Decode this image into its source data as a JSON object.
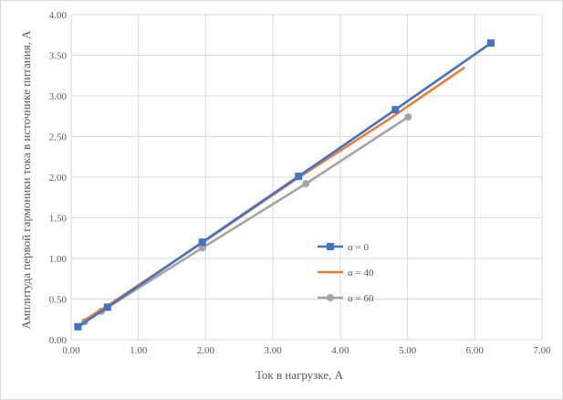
{
  "chart_data": {
    "type": "scatter",
    "title": "",
    "xlabel": "Ток в нагрузке, А",
    "ylabel": "Амплитуда первой гармоники тока в источнике питания, А",
    "xlim": [
      0,
      7
    ],
    "ylim": [
      0,
      4
    ],
    "x_ticks": [
      "0.00",
      "1.00",
      "2.00",
      "3.00",
      "4.00",
      "5.00",
      "6.00",
      "7.00"
    ],
    "y_ticks": [
      "0.00",
      "0.50",
      "1.00",
      "1.50",
      "2.00",
      "2.50",
      "3.00",
      "3.50",
      "4.00"
    ],
    "grid": true,
    "legend_position": "right",
    "series": [
      {
        "name": "α = 0",
        "color": "#4472C4",
        "marker": "square",
        "points": [
          [
            0.1,
            0.16
          ],
          [
            0.54,
            0.4
          ],
          [
            1.95,
            1.2
          ],
          [
            3.38,
            2.01
          ],
          [
            4.82,
            2.83
          ],
          [
            6.24,
            3.65
          ]
        ],
        "markers": [
          [
            0.1,
            0.16
          ],
          [
            0.54,
            0.4
          ],
          [
            1.95,
            1.2
          ],
          [
            3.38,
            2.01
          ],
          [
            4.82,
            2.83
          ],
          [
            6.24,
            3.65
          ]
        ]
      },
      {
        "name": "α = 40",
        "color": "#ED7D31",
        "marker": "none",
        "points": [
          [
            0.18,
            0.23
          ],
          [
            0.6,
            0.45
          ],
          [
            1.98,
            1.21
          ],
          [
            3.37,
            1.99
          ],
          [
            4.7,
            2.7
          ],
          [
            5.85,
            3.35
          ]
        ],
        "markers": []
      },
      {
        "name": "α = 60",
        "color": "#A5A5A5",
        "marker": "circle",
        "points": [
          [
            0.2,
            0.22
          ],
          [
            0.45,
            0.35
          ],
          [
            1.95,
            1.13
          ],
          [
            3.49,
            1.92
          ],
          [
            5.01,
            2.74
          ]
        ],
        "markers": [
          [
            0.2,
            0.22
          ],
          [
            0.45,
            0.35
          ],
          [
            1.95,
            1.13
          ],
          [
            3.49,
            1.92
          ],
          [
            5.01,
            2.74
          ]
        ]
      }
    ]
  }
}
